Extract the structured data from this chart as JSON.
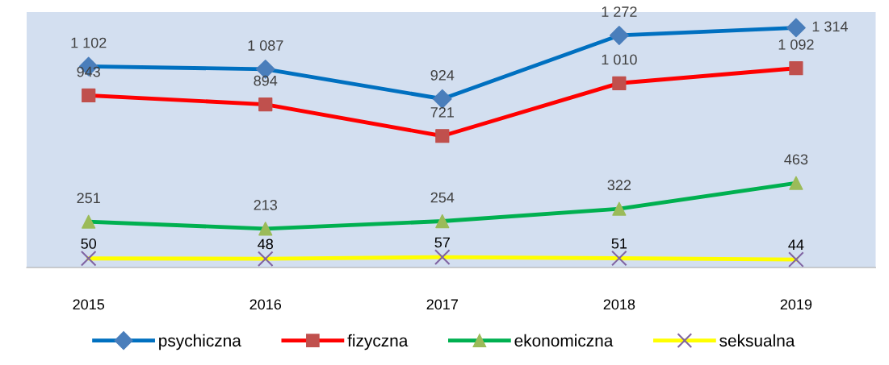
{
  "chart_data": {
    "type": "line",
    "categories": [
      "2015",
      "2016",
      "2017",
      "2018",
      "2019"
    ],
    "ylim": [
      0,
      1400
    ],
    "tick_labels": "x",
    "grid": false,
    "legend": "bottom",
    "line_style": "solid",
    "series": [
      {
        "name": "psychiczna",
        "color": "#0070c0",
        "colors": [
          "#4a7ebb",
          "#4a7ebb",
          "#4a7ebb",
          "#4a7ebb",
          "#4a7ebb"
        ],
        "marker": "diamond",
        "values": [
          1102,
          1087,
          924,
          1272,
          1314
        ],
        "value_labels": [
          "1 102",
          "1 087",
          "924",
          "1 272",
          "1 314"
        ]
      },
      {
        "name": "fizyczna",
        "color": "#ff0000",
        "colors": [
          "#c0504d",
          "#c0504d",
          "#c0504d",
          "#c0504d",
          "#c0504d"
        ],
        "marker": "square",
        "values": [
          943,
          894,
          721,
          1010,
          1092
        ],
        "value_labels": [
          "943",
          "894",
          "721",
          "1 010",
          "1 092"
        ]
      },
      {
        "name": "ekonomiczna",
        "color": "#00b050",
        "colors": [
          "#9bbb59",
          "#9bbb59",
          "#9bbb59",
          "#9bbb59",
          "#9bbb59"
        ],
        "marker": "triangle",
        "values": [
          251,
          213,
          254,
          322,
          463
        ],
        "value_labels": [
          "251",
          "213",
          "254",
          "322",
          "463"
        ]
      },
      {
        "name": "seksualna",
        "color": "#ffff00",
        "colors": [
          "#8064a2",
          "#8064a2",
          "#8064a2",
          "#8064a2",
          "#8064a2"
        ],
        "marker": "cross",
        "values": [
          50,
          48,
          57,
          51,
          44
        ],
        "value_labels": [
          "50",
          "48",
          "57",
          "51",
          "44"
        ]
      }
    ]
  }
}
